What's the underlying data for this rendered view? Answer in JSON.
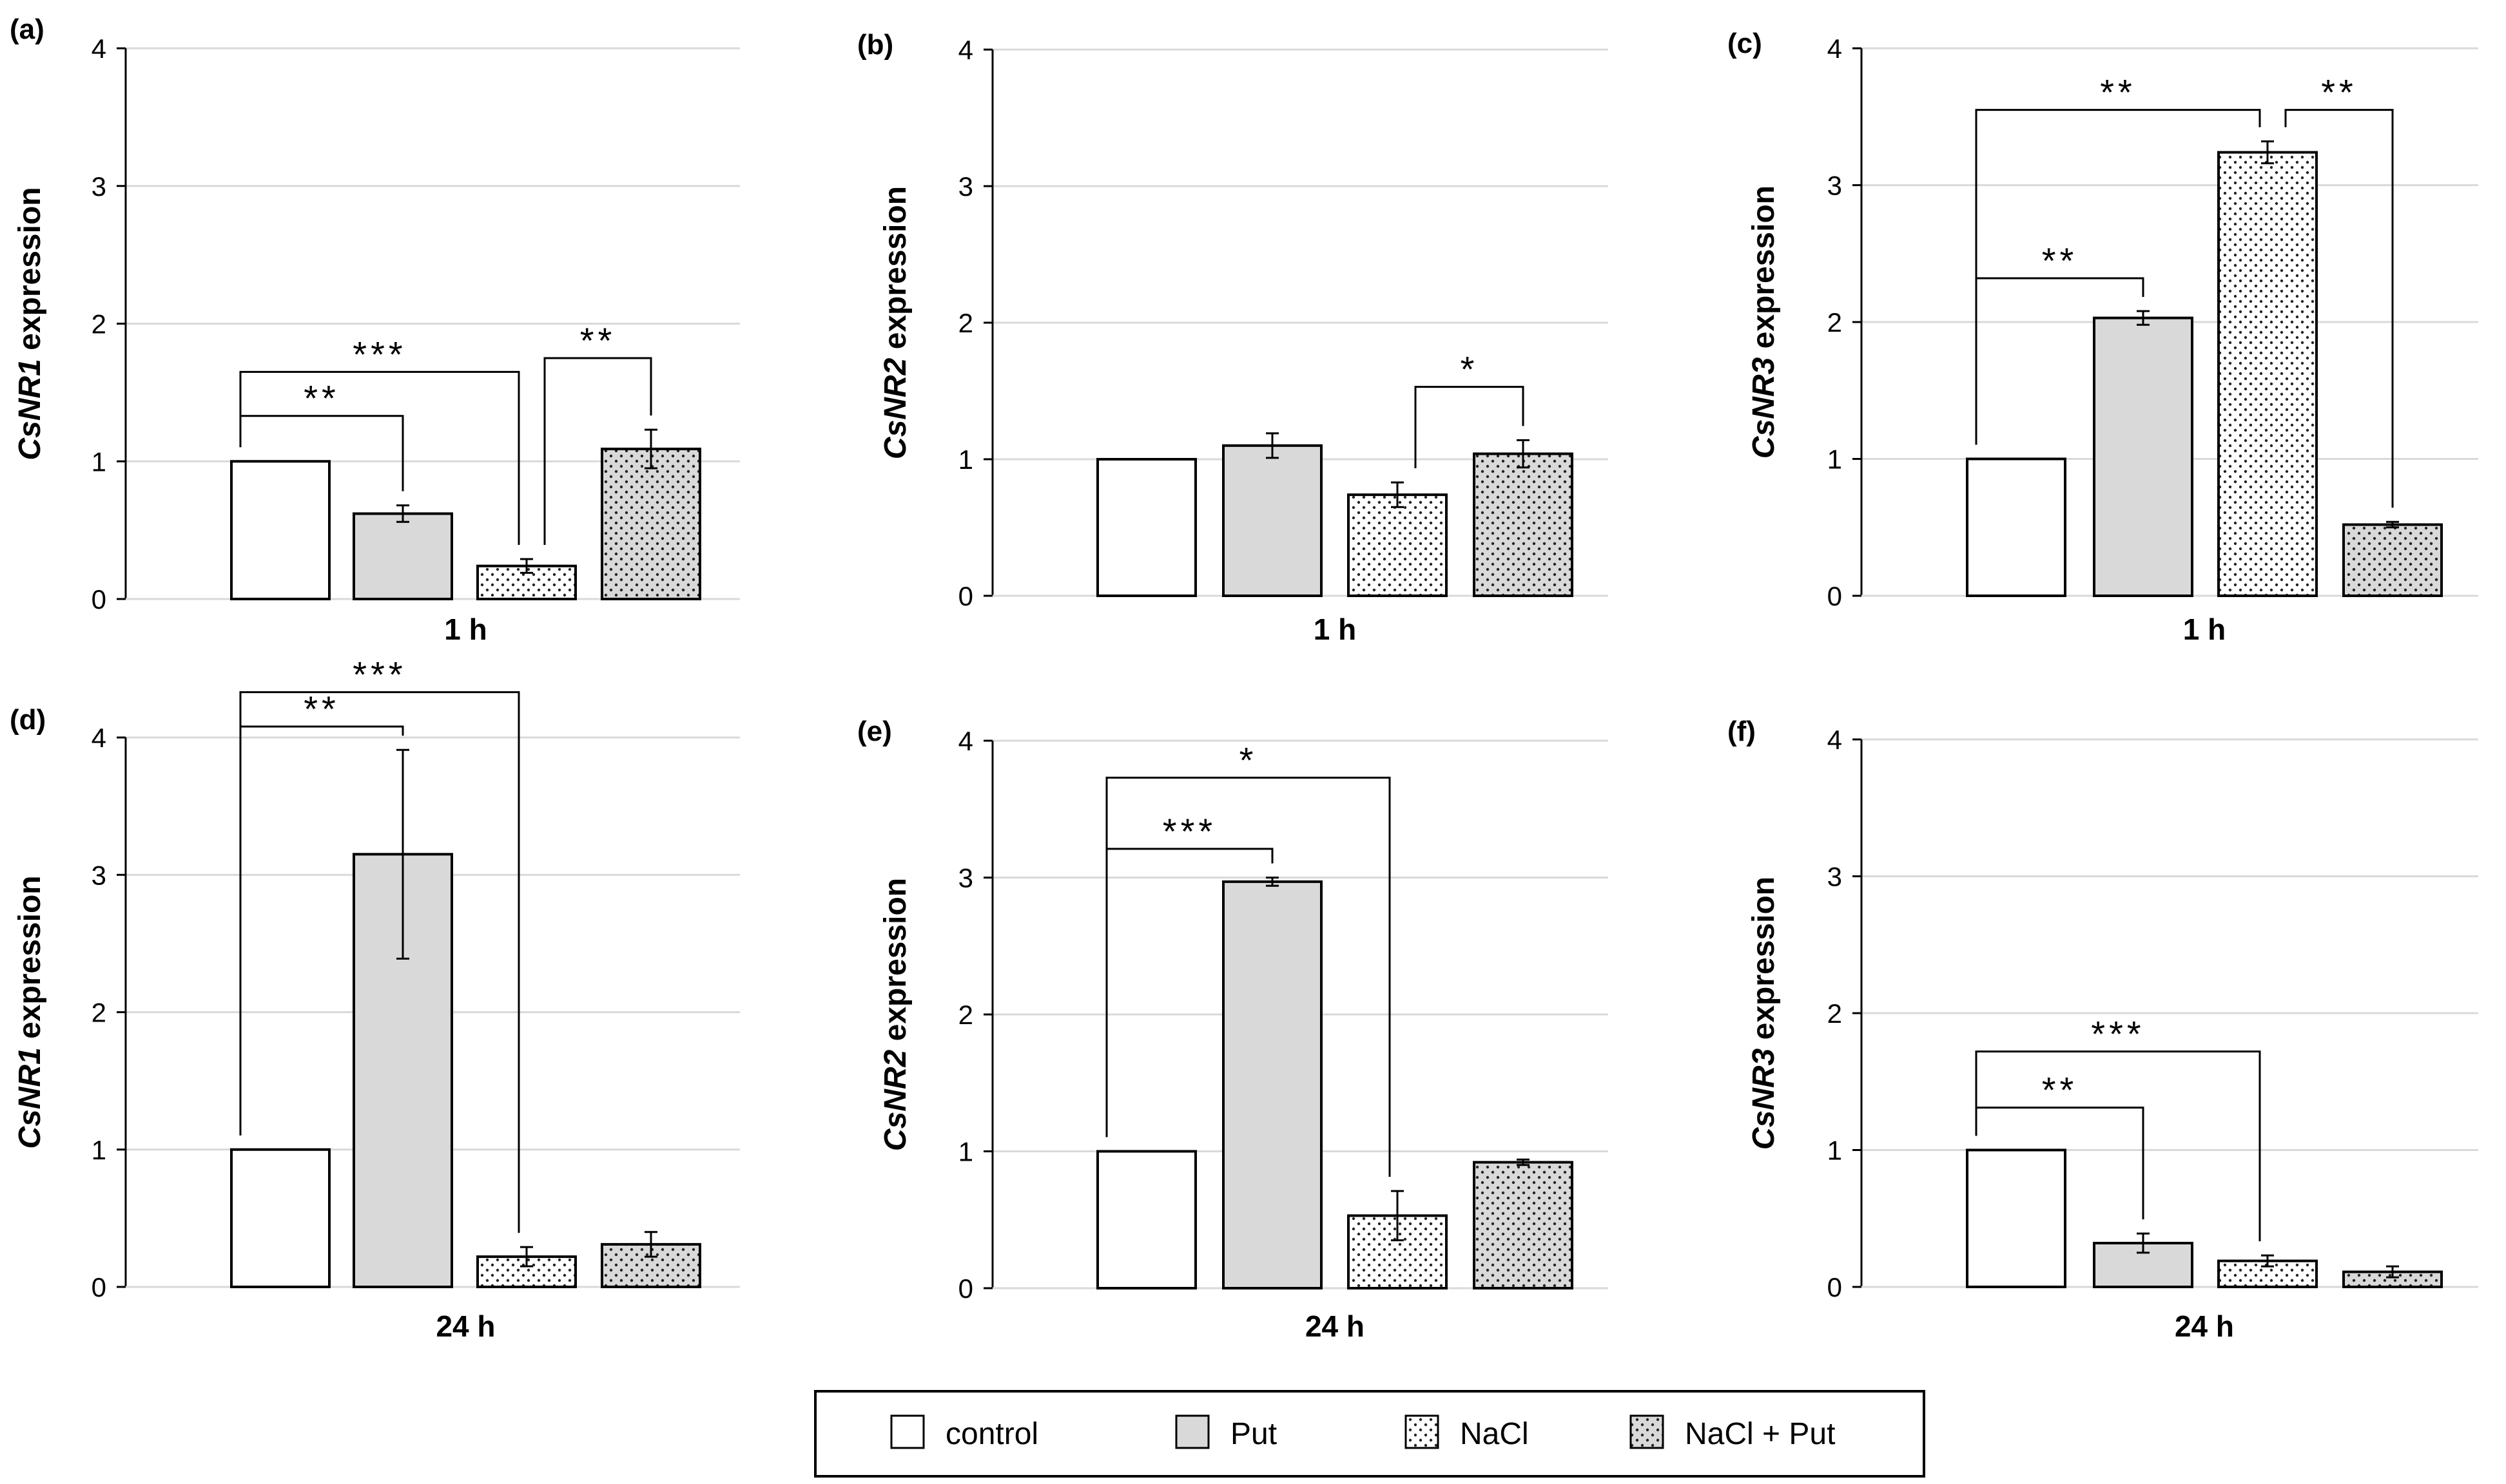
{
  "legend": {
    "items": [
      {
        "label": "control",
        "pattern": "plain"
      },
      {
        "label": "Put",
        "pattern": "grey"
      },
      {
        "label": "NaCl",
        "pattern": "dots"
      },
      {
        "label": "NaCl + Put",
        "pattern": "greydots"
      }
    ]
  },
  "colors": {
    "grey_fill": "#d9d9d9",
    "stroke": "#000000",
    "grid": "#d9d9d9",
    "text": "#000000"
  },
  "chart_data": [
    {
      "type": "bar",
      "panel": "(a)",
      "gene": "CsNR1",
      "ylabel_suffix": " expression",
      "xlabel": "1 h",
      "ylim": [
        0,
        4
      ],
      "yticks": [
        "0",
        "1",
        "2",
        "3",
        "4"
      ],
      "categories": [
        "control",
        "Put",
        "NaCl",
        "NaCl + Put"
      ],
      "values": [
        1.0,
        0.62,
        0.24,
        1.09
      ],
      "errors": [
        0,
        0.06,
        0.05,
        0.14
      ],
      "significance": [
        {
          "from": 0,
          "to": 1,
          "label": "**",
          "level": 1.33
        },
        {
          "from": 0,
          "to": 2,
          "label": "***",
          "level": 1.65
        },
        {
          "from": 2,
          "to": 3,
          "label": "**",
          "level": 1.75
        }
      ]
    },
    {
      "type": "bar",
      "panel": "(b)",
      "gene": "CsNR2",
      "ylabel_suffix": " expression",
      "xlabel": "1 h",
      "ylim": [
        0,
        4
      ],
      "yticks": [
        "0",
        "1",
        "2",
        "3",
        "4"
      ],
      "categories": [
        "control",
        "Put",
        "NaCl",
        "NaCl + Put"
      ],
      "values": [
        1.0,
        1.1,
        0.74,
        1.04
      ],
      "errors": [
        0,
        0.09,
        0.09,
        0.1
      ],
      "significance": [
        {
          "from": 2,
          "to": 3,
          "label": "*",
          "level": 1.53
        }
      ]
    },
    {
      "type": "bar",
      "panel": "(c)",
      "gene": "CsNR3",
      "ylabel_suffix": " expression",
      "xlabel": "1 h",
      "ylim": [
        0,
        4
      ],
      "yticks": [
        "0",
        "1",
        "2",
        "3",
        "4"
      ],
      "categories": [
        "control",
        "Put",
        "NaCl",
        "NaCl + Put"
      ],
      "values": [
        1.0,
        2.03,
        3.24,
        0.52
      ],
      "errors": [
        0,
        0.05,
        0.08,
        0.02
      ],
      "significance": [
        {
          "from": 0,
          "to": 1,
          "label": "**",
          "level": 2.32
        },
        {
          "from": 0,
          "to": 2,
          "label": "**",
          "level": 3.55
        },
        {
          "from": 2,
          "to": 3,
          "label": "**",
          "level": 3.55
        }
      ]
    },
    {
      "type": "bar",
      "panel": "(d)",
      "gene": "CsNR1",
      "ylabel_suffix": " expression",
      "xlabel": "24 h",
      "ylim": [
        0,
        4
      ],
      "yticks": [
        "0",
        "1",
        "2",
        "3",
        "4"
      ],
      "categories": [
        "control",
        "Put",
        "NaCl",
        "NaCl + Put"
      ],
      "values": [
        1.0,
        3.15,
        0.22,
        0.31
      ],
      "errors": [
        0,
        0.76,
        0.07,
        0.09
      ],
      "significance": [
        {
          "from": 0,
          "to": 1,
          "label": "**",
          "level": 4.08
        },
        {
          "from": 0,
          "to": 2,
          "label": "***",
          "level": 4.33
        }
      ]
    },
    {
      "type": "bar",
      "panel": "(e)",
      "gene": "CsNR2",
      "ylabel_suffix": " expression",
      "xlabel": "24 h",
      "ylim": [
        0,
        4
      ],
      "yticks": [
        "0",
        "1",
        "2",
        "3",
        "4"
      ],
      "categories": [
        "control",
        "Put",
        "NaCl",
        "NaCl + Put"
      ],
      "values": [
        1.0,
        2.97,
        0.53,
        0.92
      ],
      "errors": [
        0,
        0.03,
        0.18,
        0.02
      ],
      "significance": [
        {
          "from": 0,
          "to": 1,
          "label": "***",
          "level": 3.21
        },
        {
          "from": 0,
          "to": 2,
          "label": "*",
          "level": 3.73
        }
      ]
    },
    {
      "type": "bar",
      "panel": "(f)",
      "gene": "CsNR3",
      "ylabel_suffix": " expression",
      "xlabel": "24 h",
      "ylim": [
        0,
        4
      ],
      "yticks": [
        "0",
        "1",
        "2",
        "3",
        "4"
      ],
      "categories": [
        "control",
        "Put",
        "NaCl",
        "NaCl + Put"
      ],
      "values": [
        1.0,
        0.32,
        0.19,
        0.11
      ],
      "errors": [
        0,
        0.07,
        0.04,
        0.04
      ],
      "significance": [
        {
          "from": 0,
          "to": 1,
          "label": "**",
          "level": 1.31
        },
        {
          "from": 0,
          "to": 2,
          "label": "***",
          "level": 1.72
        }
      ]
    }
  ]
}
